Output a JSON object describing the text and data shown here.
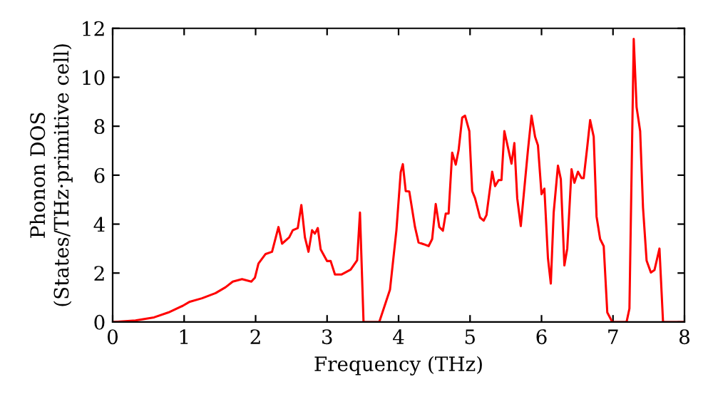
{
  "chart_data": {
    "type": "line",
    "xlabel": "Frequency (THz)",
    "ylabel": "Phonon DOS\n(States/THz·primitive cell)",
    "xlim": [
      0,
      8
    ],
    "ylim": [
      0,
      12
    ],
    "xticks": [
      0,
      1,
      2,
      3,
      4,
      5,
      6,
      7,
      8
    ],
    "yticks": [
      0,
      2,
      4,
      6,
      8,
      10,
      12
    ],
    "grid": false,
    "legend": false,
    "marker": "none",
    "line_style": "solid",
    "series": [
      {
        "color": "#ff0000",
        "x": [
          0,
          0.32,
          0.58,
          0.78,
          0.98,
          1.08,
          1.25,
          1.44,
          1.58,
          1.68,
          1.81,
          1.94,
          1.99,
          2.04,
          2.14,
          2.23,
          2.32,
          2.37,
          2.47,
          2.52,
          2.59,
          2.64,
          2.69,
          2.74,
          2.79,
          2.83,
          2.87,
          2.91,
          3.0,
          3.05,
          3.11,
          3.2,
          3.33,
          3.42,
          3.46,
          3.51,
          3.73,
          3.88,
          3.97,
          4.03,
          4.06,
          4.1,
          4.15,
          4.23,
          4.28,
          4.35,
          4.42,
          4.47,
          4.52,
          4.57,
          4.62,
          4.66,
          4.7,
          4.75,
          4.8,
          4.84,
          4.89,
          4.93,
          4.99,
          5.03,
          5.07,
          5.14,
          5.19,
          5.23,
          5.31,
          5.35,
          5.4,
          5.44,
          5.48,
          5.58,
          5.62,
          5.66,
          5.71,
          5.81,
          5.86,
          5.91,
          5.95,
          6.0,
          6.04,
          6.09,
          6.13,
          6.17,
          6.23,
          6.27,
          6.32,
          6.36,
          6.42,
          6.46,
          6.51,
          6.56,
          6.59,
          6.64,
          6.68,
          6.73,
          6.77,
          6.82,
          6.87,
          6.92,
          6.99,
          7.19,
          7.23,
          7.29,
          7.33,
          7.38,
          7.42,
          7.47,
          7.53,
          7.58,
          7.65,
          7.7,
          8.0
        ],
        "values": [
          0,
          0.06,
          0.19,
          0.39,
          0.66,
          0.83,
          0.97,
          1.18,
          1.42,
          1.65,
          1.75,
          1.65,
          1.81,
          2.39,
          2.78,
          2.87,
          3.88,
          3.2,
          3.46,
          3.75,
          3.84,
          4.78,
          3.46,
          2.87,
          3.75,
          3.61,
          3.84,
          2.97,
          2.49,
          2.49,
          1.94,
          1.94,
          2.14,
          2.52,
          4.47,
          0,
          0,
          1.32,
          3.75,
          6.12,
          6.45,
          5.35,
          5.33,
          3.88,
          3.25,
          3.18,
          3.1,
          3.39,
          4.82,
          3.88,
          3.73,
          4.43,
          4.43,
          6.92,
          6.43,
          7.02,
          8.35,
          8.43,
          7.8,
          5.35,
          5.06,
          4.27,
          4.14,
          4.37,
          6.14,
          5.55,
          5.8,
          5.8,
          7.8,
          6.47,
          7.31,
          5.06,
          3.92,
          7.02,
          8.43,
          7.57,
          7.22,
          5.22,
          5.45,
          2.61,
          1.57,
          4.47,
          6.39,
          5.84,
          2.31,
          3.0,
          6.24,
          5.69,
          6.14,
          5.88,
          5.88,
          7.16,
          8.25,
          7.57,
          4.31,
          3.39,
          3.1,
          0.39,
          0,
          0,
          0.55,
          11.57,
          8.78,
          7.8,
          4.67,
          2.51,
          2.02,
          2.12,
          3.0,
          0,
          0
        ]
      }
    ]
  }
}
